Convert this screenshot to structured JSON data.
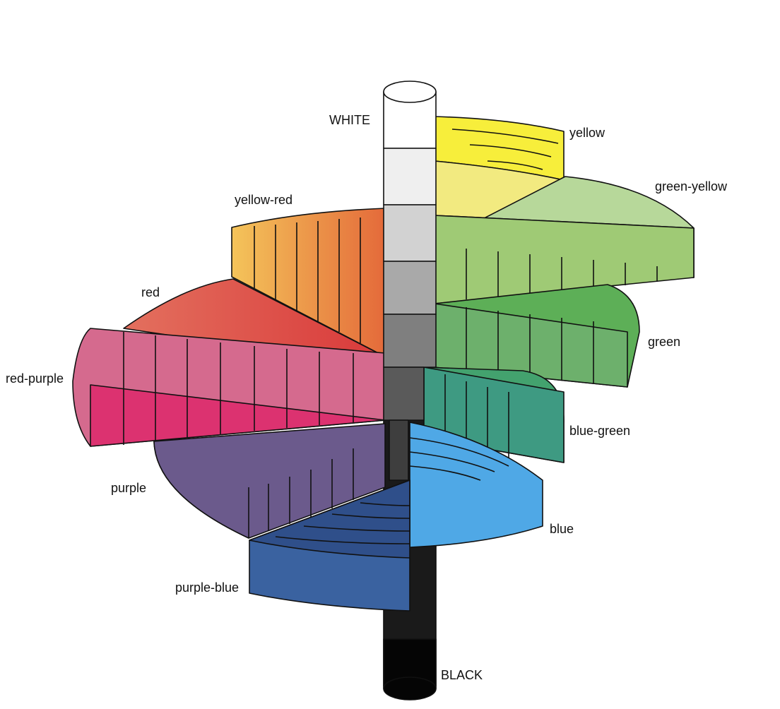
{
  "title": "",
  "axis": {
    "top_label": "WHITE",
    "bottom_label": "BLACK"
  },
  "hues": [
    {
      "id": "yellow",
      "label": "yellow",
      "color": "#F7EE3B"
    },
    {
      "id": "green-yellow",
      "label": "green-yellow",
      "color": "#93C35D"
    },
    {
      "id": "green",
      "label": "green",
      "color": "#5DAF57"
    },
    {
      "id": "blue-green",
      "label": "blue-green",
      "color": "#43A26E"
    },
    {
      "id": "blue",
      "label": "blue",
      "color": "#4FA8E6"
    },
    {
      "id": "purple-blue",
      "label": "purple-blue",
      "color": "#3A62A0"
    },
    {
      "id": "purple",
      "label": "purple",
      "color": "#7A4D92"
    },
    {
      "id": "red-purple",
      "label": "red-purple",
      "color": "#DC3270"
    },
    {
      "id": "red",
      "label": "red",
      "color": "#D9393A"
    },
    {
      "id": "yellow-red",
      "label": "yellow-red",
      "color": "#E46A3A"
    }
  ],
  "value_scale_colors": [
    "#FFFFFF",
    "#EFEFEF",
    "#D2D2D2",
    "#A9A9A9",
    "#7F7F7F",
    "#5A5A5A",
    "#3E3E3E",
    "#2A2A2A",
    "#1C1C1C",
    "#050505"
  ]
}
